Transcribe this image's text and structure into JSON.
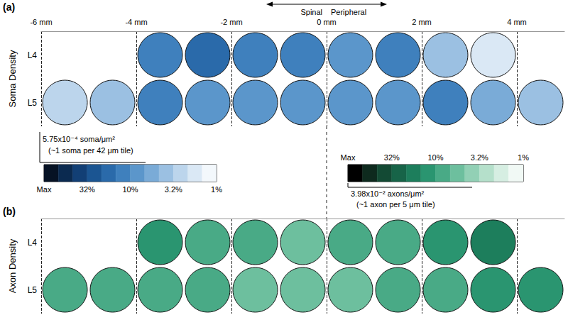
{
  "chart_data": {
    "type": "heatmap",
    "direction": {
      "left": "Spinal",
      "right": "Peripheral",
      "x": 0
    },
    "xlim": [
      -6,
      5
    ],
    "xticks": [
      {
        "value": -6,
        "label": "-6 mm"
      },
      {
        "value": -4,
        "label": "-4 mm"
      },
      {
        "value": -2,
        "label": "-2 mm"
      },
      {
        "value": 0,
        "label": "0 mm"
      },
      {
        "value": 2,
        "label": "2 mm"
      },
      {
        "value": 4,
        "label": "4 mm"
      }
    ],
    "grid": true,
    "panels": [
      {
        "label": "(a)",
        "title": "Soma Density",
        "rows": [
          {
            "name": "L4",
            "x": [
              -3.5,
              -2.5,
              -1.5,
              -0.5,
              0.5,
              1.5,
              2.5,
              3.5
            ],
            "values": [
              14,
              16,
              10,
              12,
              9,
              11,
              4,
              1.6
            ]
          },
          {
            "name": "L5",
            "x": [
              -5.5,
              -4.5,
              -3.5,
              -2.5,
              -1.5,
              -0.5,
              0.5,
              1.5,
              2.5,
              3.5,
              4.5
            ],
            "values": [
              2.5,
              3.5,
              12,
              9,
              8,
              8,
              9,
              9,
              10,
              6,
              4
            ]
          }
        ],
        "colorbar": {
          "range": [
            100,
            1
          ],
          "bins": [
            100,
            68.1,
            46.4,
            31.6,
            21.5,
            14.7,
            10,
            6.81,
            4.64,
            3.16,
            2.15,
            1.47,
            1
          ],
          "colors": [
            "#061224",
            "#0b2a50",
            "#123f75",
            "#1b5592",
            "#2a6aaa",
            "#3f80bd",
            "#5b96cb",
            "#7aabd7",
            "#9bc0e2",
            "#bcd5ec",
            "#dae8f5",
            "#f3f8fc"
          ],
          "ticks": [
            {
              "value": 100,
              "label": "Max"
            },
            {
              "value": 31.6,
              "label": "32%"
            },
            {
              "value": 10,
              "label": "10%"
            },
            {
              "value": 3.16,
              "label": "3.2%"
            },
            {
              "value": 1,
              "label": "1%"
            }
          ],
          "max_value": "5.75x10⁻⁴ soma/μm²",
          "max_note": "(~1 soma per 42 μm tile)"
        }
      },
      {
        "label": "(b)",
        "title": "Axon Density",
        "tick_labels": "y",
        "rows": [
          {
            "name": "L4",
            "x": [
              -3.5,
              -2.5,
              -1.5,
              -0.5,
              0.5,
              1.5,
              2.5,
              3.5
            ],
            "values": [
              10,
              9,
              7,
              6,
              7,
              8,
              12,
              15
            ]
          },
          {
            "name": "L5",
            "x": [
              -5.5,
              -4.5,
              -3.5,
              -2.5,
              -1.5,
              -0.5,
              0.5,
              1.5,
              2.5,
              3.5,
              4.5
            ],
            "values": [
              8,
              9,
              9,
              8,
              6,
              6,
              6,
              7,
              9,
              11,
              14
            ]
          }
        ],
        "colorbar": {
          "range": [
            100,
            1
          ],
          "bins": [
            100,
            68.1,
            46.4,
            31.6,
            21.5,
            14.7,
            10,
            6.81,
            4.64,
            3.16,
            2.15,
            1.47,
            1
          ],
          "colors": [
            "#000000",
            "#0e2a1e",
            "#134a34",
            "#176448",
            "#1d7e5c",
            "#2a9570",
            "#49aa86",
            "#6dbf9e",
            "#92d0b5",
            "#b5e0cb",
            "#d6eee2",
            "#f1f9f5"
          ],
          "ticks": [
            {
              "value": 100,
              "label": "Max"
            },
            {
              "value": 31.6,
              "label": "32%"
            },
            {
              "value": 10,
              "label": "10%"
            },
            {
              "value": 3.16,
              "label": "3.2%"
            },
            {
              "value": 1,
              "label": "1%"
            }
          ],
          "max_value": "3.98x10⁻² axons/μm²",
          "max_note": "(~1 axon per 5 μm tile)"
        }
      }
    ]
  }
}
